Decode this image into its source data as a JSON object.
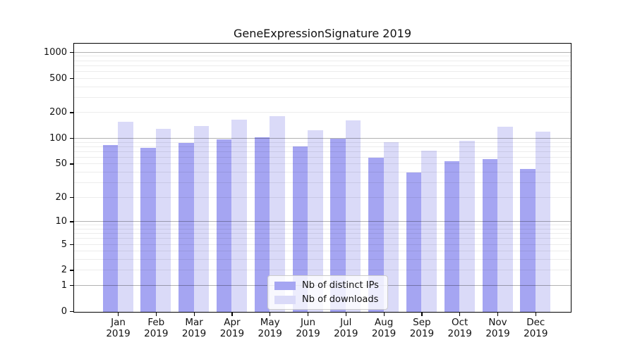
{
  "chart_data": {
    "type": "bar",
    "title": "GeneExpressionSignature 2019",
    "categories": [
      "Jan 2019",
      "Feb 2019",
      "Mar 2019",
      "Apr 2019",
      "May 2019",
      "Jun 2019",
      "Jul 2019",
      "Aug 2019",
      "Sep 2019",
      "Oct 2019",
      "Nov 2019",
      "Dec 2019"
    ],
    "x_months": [
      "Jan",
      "Feb",
      "Mar",
      "Apr",
      "May",
      "Jun",
      "Jul",
      "Aug",
      "Sep",
      "Oct",
      "Nov",
      "Dec"
    ],
    "x_year": "2019",
    "series": [
      {
        "name": "Nb of distinct IPs",
        "color": "#a5a5f2",
        "values": [
          85,
          79,
          90,
          99,
          104,
          81,
          101,
          60,
          40,
          54,
          58,
          44
        ]
      },
      {
        "name": "Nb of downloads",
        "color": "#dadaf8",
        "values": [
          157,
          130,
          142,
          167,
          183,
          126,
          164,
          92,
          72,
          94,
          139,
          122
        ]
      }
    ],
    "xlabel": "",
    "ylabel": "",
    "yscale": "log1p",
    "y_ticks": [
      0,
      1,
      2,
      5,
      10,
      20,
      50,
      100,
      200,
      500,
      1000
    ],
    "ylim": [
      0,
      1250
    ],
    "grid": true,
    "legend_position": "lower center"
  }
}
